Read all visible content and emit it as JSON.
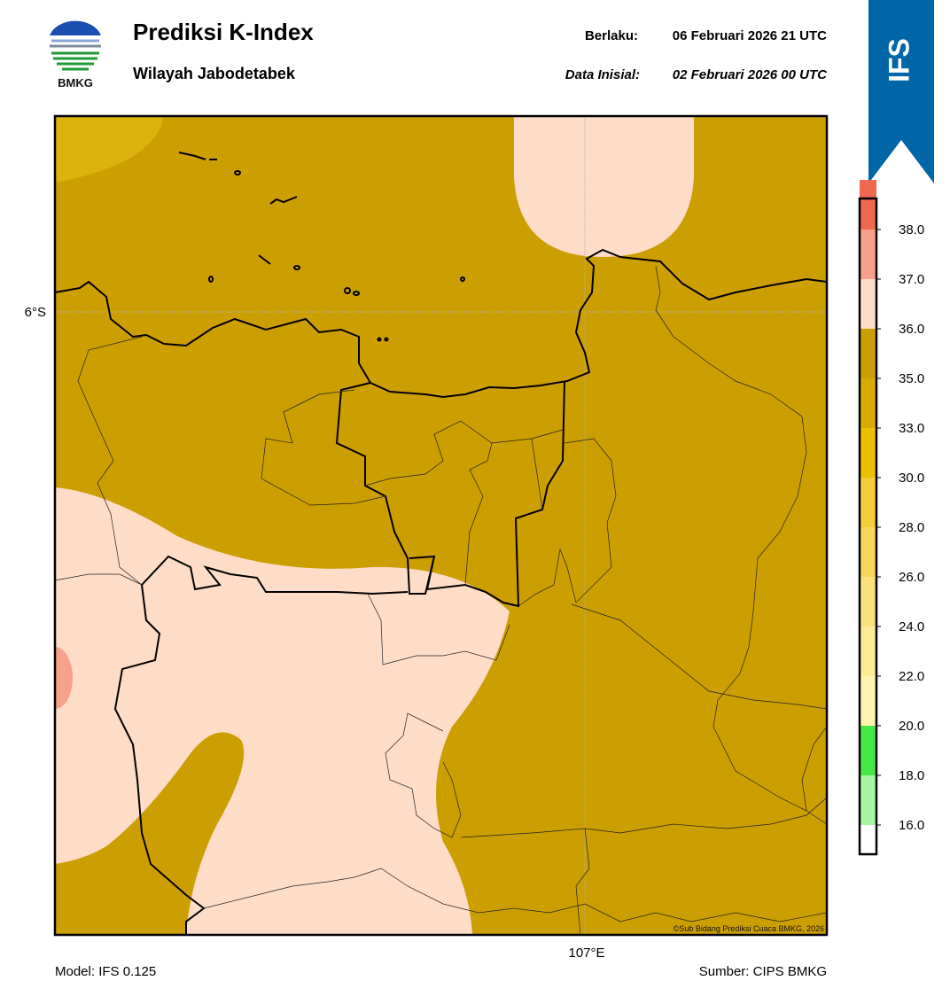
{
  "header": {
    "logo_text": "BMKG",
    "title": "Prediksi K-Index",
    "subtitle": "Wilayah Jabodetabek",
    "valid_label": "Berlaku:",
    "valid_time": "06 Februari 2026 21 UTC",
    "init_label": "Data Inisial:",
    "init_time": "02 Februari 2026 00 UTC",
    "badge": "IFS"
  },
  "map": {
    "lat_label": "6°S",
    "lon_label": "107°E",
    "credit": "©Sub Bidang Prediksi Cuaca BMKG, 2026"
  },
  "colorbar": {
    "ticks": [
      "16.0",
      "18.0",
      "20.0",
      "22.0",
      "24.0",
      "26.0",
      "28.0",
      "30.0",
      "33.0",
      "35.0",
      "36.0",
      "37.0",
      "38.0"
    ],
    "colors": [
      "#ffffff",
      "#a6f5a0",
      "#46e846",
      "#fff3b0",
      "#fdeb96",
      "#fbe17a",
      "#f8d65a",
      "#f5cc3a",
      "#ecbf00",
      "#d9aa00",
      "#cc9f00",
      "#fddcc8",
      "#f7a08c",
      "#ef6850",
      "#e6302a"
    ]
  },
  "footer": {
    "model": "Model: IFS 0.125",
    "source": "Sumber: CIPS BMKG"
  }
}
